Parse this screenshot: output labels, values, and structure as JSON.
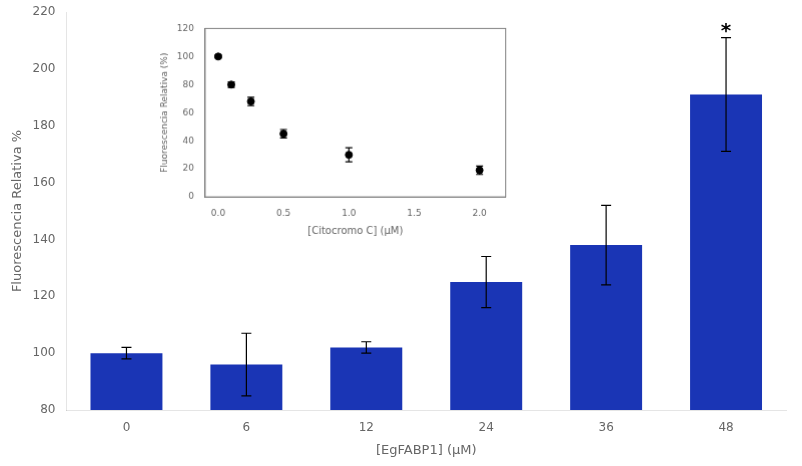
{
  "chart_data": [
    {
      "type": "bar",
      "categories": [
        "0",
        "6",
        "12",
        "24",
        "36",
        "48"
      ],
      "values": [
        100,
        96,
        102,
        125,
        138,
        191
      ],
      "errors": [
        2,
        11,
        2,
        9,
        14,
        20
      ],
      "color": "#1a35b5",
      "xlabel": "[EgFABP1] (μM)",
      "ylabel": "Fluorescencia Relativa %",
      "ylim": [
        80,
        220
      ],
      "yticks": [
        80,
        100,
        120,
        140,
        160,
        180,
        200,
        220
      ],
      "grid": false,
      "annotations": [
        {
          "text": "*",
          "x": "48"
        }
      ]
    },
    {
      "type": "scatter",
      "x": [
        0.0,
        0.1,
        0.25,
        0.5,
        1.0,
        2.0
      ],
      "values": [
        100,
        80,
        68,
        45,
        30,
        19
      ],
      "errors": [
        1,
        2,
        3,
        3,
        5,
        3
      ],
      "color": "black",
      "marker": "circle",
      "line_style": "none",
      "xlabel": "[Citocromo C] (μM)",
      "ylabel": "Fluorescencia Relativa (%)",
      "xlim": [
        -0.1,
        2.2
      ],
      "ylim": [
        0,
        120
      ],
      "xticks": [
        {
          "value": 0,
          "label": "0.0"
        },
        0.5,
        {
          "value": 1,
          "label": "1.0"
        },
        1.5,
        {
          "value": 2,
          "label": "2.0"
        }
      ],
      "yticks": [
        0,
        20,
        40,
        60,
        80,
        100,
        120
      ],
      "grid": false
    }
  ]
}
